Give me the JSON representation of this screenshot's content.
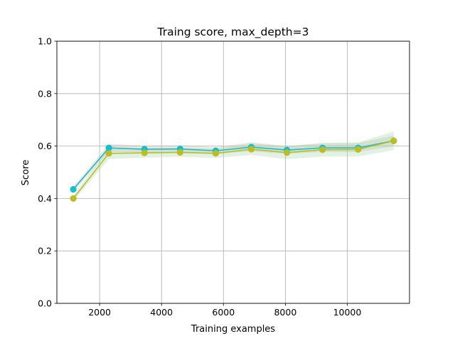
{
  "chart_data": {
    "type": "line",
    "title": "Traing score, max_depth=3",
    "xlabel": "Training examples",
    "ylabel": "Score",
    "xlim": [
      620,
      12010
    ],
    "ylim": [
      0.0,
      1.0
    ],
    "xticks": [
      2000,
      4000,
      6000,
      8000,
      10000
    ],
    "xtick_labels": [
      "2000",
      "4000",
      "6000",
      "8000",
      "10000"
    ],
    "yticks": [
      0.0,
      0.2,
      0.4,
      0.6,
      0.8,
      1.0
    ],
    "ytick_labels": [
      "0.0",
      "0.2",
      "0.4",
      "0.6",
      "0.8",
      "1.0"
    ],
    "grid": true,
    "x": [
      1150,
      2300,
      3450,
      4600,
      5750,
      6900,
      8050,
      9200,
      10350,
      11500
    ],
    "series": [
      {
        "name": "series-cyan",
        "color": "#17becf",
        "values": [
          0.435,
          0.593,
          0.588,
          0.589,
          0.582,
          0.596,
          0.585,
          0.593,
          0.593,
          0.62
        ],
        "band_lower": [
          0.425,
          0.578,
          0.576,
          0.577,
          0.57,
          0.58,
          0.57,
          0.578,
          0.577,
          0.6
        ],
        "band_upper": [
          0.445,
          0.608,
          0.602,
          0.603,
          0.596,
          0.614,
          0.6,
          0.61,
          0.612,
          0.64
        ],
        "band_color": "#c8b8a8"
      },
      {
        "name": "series-olive",
        "color": "#bcbd22",
        "values": [
          0.4,
          0.572,
          0.574,
          0.576,
          0.572,
          0.588,
          0.575,
          0.586,
          0.587,
          0.62
        ],
        "band_lower": [
          0.39,
          0.55,
          0.556,
          0.559,
          0.555,
          0.566,
          0.55,
          0.56,
          0.56,
          0.585
        ],
        "band_upper": [
          0.41,
          0.594,
          0.592,
          0.593,
          0.589,
          0.61,
          0.6,
          0.612,
          0.614,
          0.655
        ],
        "band_color": "#a9d8b0"
      }
    ]
  }
}
